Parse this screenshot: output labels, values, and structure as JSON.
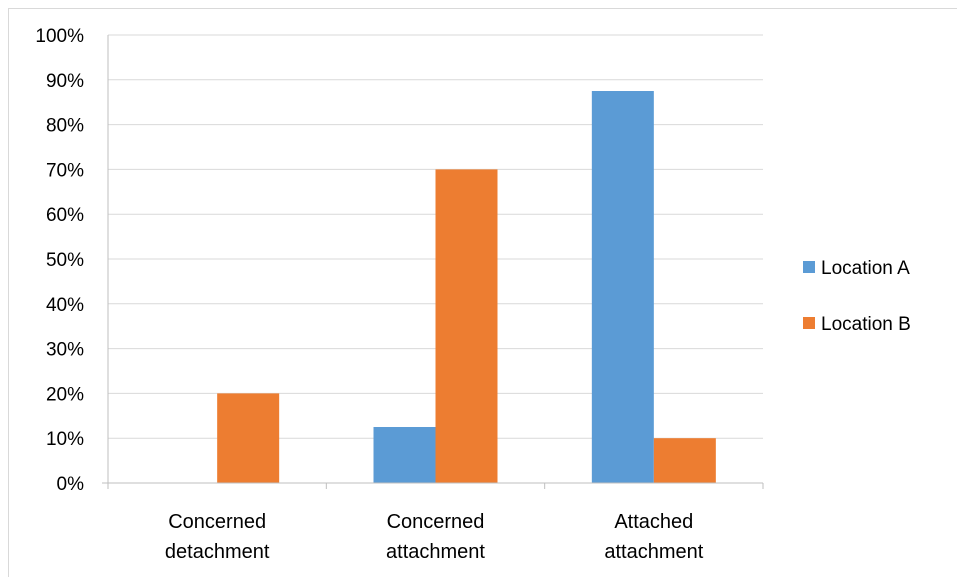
{
  "chart_data": {
    "type": "bar",
    "title": "",
    "xlabel": "",
    "ylabel": "",
    "ylim": [
      0,
      100
    ],
    "y_ticks": [
      {
        "value": 0,
        "label": "0%"
      },
      {
        "value": 10,
        "label": "10%"
      },
      {
        "value": 20,
        "label": "20%"
      },
      {
        "value": 30,
        "label": "30%"
      },
      {
        "value": 40,
        "label": "40%"
      },
      {
        "value": 50,
        "label": "50%"
      },
      {
        "value": 60,
        "label": "60%"
      },
      {
        "value": 70,
        "label": "70%"
      },
      {
        "value": 80,
        "label": "80%"
      },
      {
        "value": 90,
        "label": "90%"
      },
      {
        "value": 100,
        "label": "100%"
      }
    ],
    "categories": [
      [
        "Concerned",
        "detachment"
      ],
      [
        "Concerned",
        "attachment"
      ],
      [
        "Attached",
        "attachment"
      ]
    ],
    "series": [
      {
        "name": "Location A",
        "color": "#5b9bd5",
        "values": [
          0,
          12.5,
          87.5
        ]
      },
      {
        "name": "Location B",
        "color": "#ed7d31",
        "values": [
          20,
          70,
          10
        ]
      }
    ],
    "grid": true,
    "legend_position": "right",
    "colors": {
      "gridline": "#d9d9d9",
      "axis": "#bfbfbf"
    }
  }
}
